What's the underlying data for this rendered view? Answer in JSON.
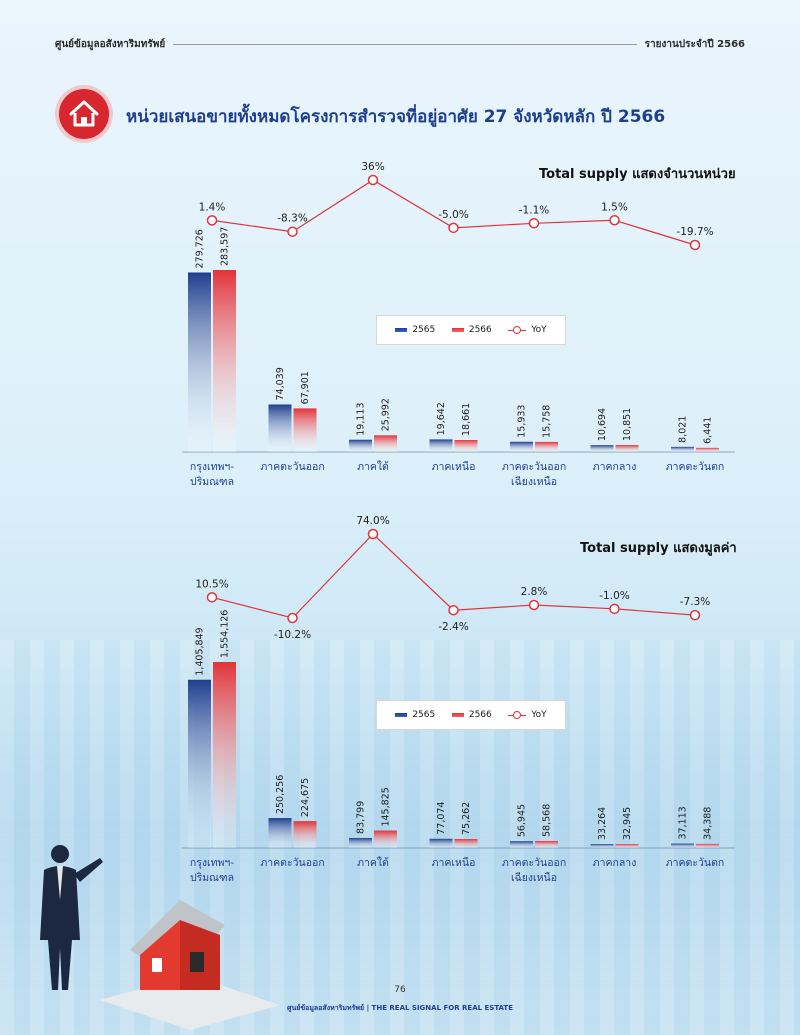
{
  "header": {
    "left": "ศูนย์ข้อมูลอสังหาริมทรัพย์",
    "right": "รายงานประจำปี 2566"
  },
  "page_title": "หน่วยเสนอขายทั้งหมดโครงการสำรวจที่อยู่อาศัย 27 จังหวัดหลัก ปี 2566",
  "icons": {
    "title": "house-icon"
  },
  "colors": {
    "accent": "#d7262d",
    "series_2565": "#1f3f8e",
    "series_2566": "#e0343a",
    "yoy": "#e0343a",
    "title": "#1f3f8e"
  },
  "legend": {
    "a": "2565",
    "b": "2566",
    "c": "YoY"
  },
  "footer": {
    "page_number": "76",
    "brand": "ศูนย์ข้อมูลอสังหาริมทรัพย์ | THE REAL SIGNAL FOR REAL ESTATE"
  },
  "chart_data": [
    {
      "type": "bar",
      "title": "Total supply แสดงจำนวนหน่วย",
      "categories": [
        "กรุงเทพฯ-\nปริมณฑล",
        "ภาคตะวันออก",
        "ภาคใต้",
        "ภาคเหนือ",
        "ภาคตะวันออก\nเฉียงเหนือ",
        "ภาคกลาง",
        "ภาคตะวันตก"
      ],
      "series": [
        {
          "name": "2565",
          "values": [
            279726,
            74039,
            19113,
            19642,
            15933,
            10694,
            8021
          ],
          "labels": [
            "279,726",
            "74,039",
            "19,113",
            "19,642",
            "15,933",
            "10,694",
            "8,021"
          ]
        },
        {
          "name": "2566",
          "values": [
            283597,
            67901,
            25992,
            18661,
            15758,
            10851,
            6441
          ],
          "labels": [
            "283,597",
            "67,901",
            "25,992",
            "18,661",
            "15,758",
            "10,851",
            "6,441"
          ]
        }
      ],
      "yoy": {
        "name": "YoY",
        "values": [
          1.4,
          -8.3,
          36,
          -5.0,
          -1.1,
          1.5,
          -19.7
        ],
        "labels": [
          "1.4%",
          "-8.3%",
          "36%",
          "-5.0%",
          "-1.1%",
          "1.5%",
          "-19.7%"
        ]
      },
      "legend_position": "center-right"
    },
    {
      "type": "bar",
      "title": "Total supply แสดงมูลค่า",
      "categories": [
        "กรุงเทพฯ-\nปริมณฑล",
        "ภาคตะวันออก",
        "ภาคใต้",
        "ภาคเหนือ",
        "ภาคตะวันออก\nเฉียงเหนือ",
        "ภาคกลาง",
        "ภาคตะวันตก"
      ],
      "series": [
        {
          "name": "2565",
          "values": [
            1405849,
            250256,
            83799,
            77074,
            56945,
            33264,
            37113
          ],
          "labels": [
            "1,405,849",
            "250,256",
            "83,799",
            "77,074",
            "56,945",
            "33,264",
            "37,113"
          ]
        },
        {
          "name": "2566",
          "values": [
            1554126,
            224675,
            145825,
            75262,
            58568,
            32945,
            34388
          ],
          "labels": [
            "1,554,126",
            "224,675",
            "145,825",
            "75,262",
            "58,568",
            "32,945",
            "34,388"
          ]
        }
      ],
      "yoy": {
        "name": "YoY",
        "values": [
          10.5,
          -10.2,
          74.0,
          -2.4,
          2.8,
          -1.0,
          -7.3
        ],
        "labels": [
          "10.5%",
          "-10.2%",
          "74.0%",
          "-2.4%",
          "2.8%",
          "-1.0%",
          "-7.3%"
        ]
      },
      "legend_position": "center-right"
    }
  ]
}
